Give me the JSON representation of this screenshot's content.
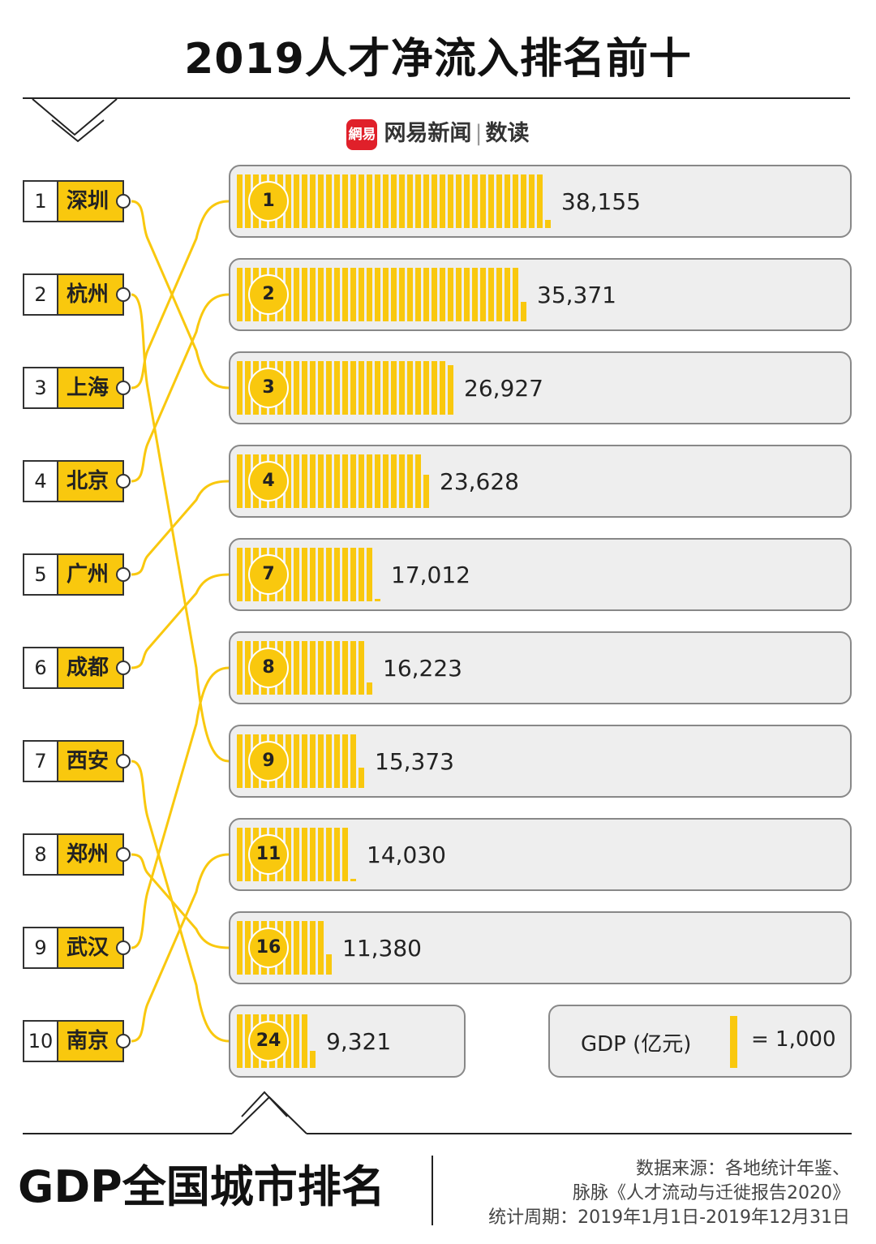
{
  "title": "2019人才净流入排名前十",
  "brand": {
    "logo_text": "網易",
    "name": "网易新闻",
    "separator": "|",
    "section": "数读"
  },
  "colors": {
    "accent": "#f9c80e",
    "box_bg": "#eeeeee",
    "border": "#888888"
  },
  "talent_ranking": [
    {
      "rank": "1",
      "city": "深圳",
      "gdp_rank": 3
    },
    {
      "rank": "2",
      "city": "杭州",
      "gdp_rank": 9
    },
    {
      "rank": "3",
      "city": "上海",
      "gdp_rank": 1
    },
    {
      "rank": "4",
      "city": "北京",
      "gdp_rank": 2
    },
    {
      "rank": "5",
      "city": "广州",
      "gdp_rank": 4
    },
    {
      "rank": "6",
      "city": "成都",
      "gdp_rank": 7
    },
    {
      "rank": "7",
      "city": "西安",
      "gdp_rank": 24
    },
    {
      "rank": "8",
      "city": "郑州",
      "gdp_rank": 16
    },
    {
      "rank": "9",
      "city": "武汉",
      "gdp_rank": 8
    },
    {
      "rank": "10",
      "city": "南京",
      "gdp_rank": 11
    }
  ],
  "chart_data": {
    "type": "bar",
    "title": "GDP全国城市排名",
    "unit": "GDP (亿元)",
    "categories": [
      "1",
      "2",
      "3",
      "4",
      "7",
      "8",
      "9",
      "11",
      "16",
      "24"
    ],
    "values": [
      38155,
      35371,
      26927,
      23628,
      17012,
      16223,
      15373,
      14030,
      11380,
      9321
    ],
    "value_labels": [
      "38,155",
      "35,371",
      "26,927",
      "23,628",
      "17,012",
      "16,223",
      "15,373",
      "14,030",
      "11,380",
      "9,321"
    ],
    "legend": {
      "label": "GDP (亿元)",
      "equals": "= 1,000",
      "unit_value": 1000
    }
  },
  "footer": {
    "title": "GDP全国城市排名",
    "source_line1": "数据来源：各地统计年鉴、",
    "source_line2": "脉脉《人才流动与迁徙报告2020》",
    "period": "统计周期：2019年1月1日-2019年12月31日"
  }
}
